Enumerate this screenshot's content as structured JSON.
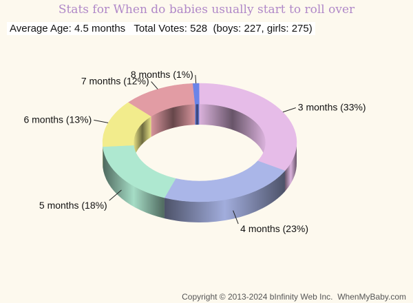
{
  "title": "Stats for When do babies usually start to roll over",
  "stats": {
    "average_age": "Average Age: 4.5 months",
    "total_votes": "Total Votes: 528",
    "breakdown": "(boys: 227, girls: 275)"
  },
  "copyright": "Copyright © 2013-2024 bInfinity Web Inc.  WhenMyBaby.com",
  "chart_data": {
    "type": "pie",
    "style": "3d-donut",
    "grid": false,
    "legend": "none",
    "slices": [
      {
        "label": "3 months (33%)",
        "name": "3 months",
        "value": 33,
        "color": "#e6bce8"
      },
      {
        "label": "4 months (23%)",
        "name": "4 months",
        "value": 23,
        "color": "#aab6e8"
      },
      {
        "label": "5 months (18%)",
        "name": "5 months",
        "value": 18,
        "color": "#aee8d0"
      },
      {
        "label": "6 months (13%)",
        "name": "6 months",
        "value": 13,
        "color": "#f2ec8c"
      },
      {
        "label": "7 months (12%)",
        "name": "7 months",
        "value": 12,
        "color": "#e29ca4"
      },
      {
        "label": "8 months (1%)",
        "name": "8 months",
        "value": 1,
        "color": "#6a84e8"
      }
    ]
  }
}
